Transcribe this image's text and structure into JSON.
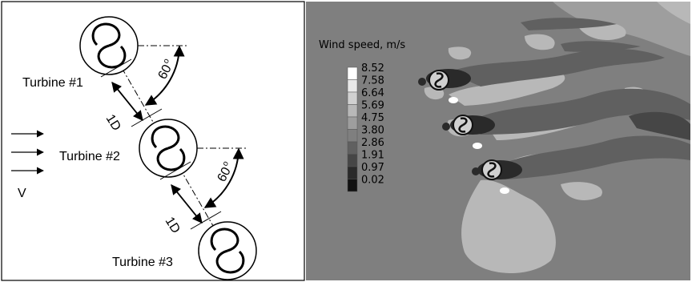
{
  "schematic": {
    "turbines": [
      {
        "label": "Turbine #1"
      },
      {
        "label": "Turbine #2"
      },
      {
        "label": "Turbine #3"
      }
    ],
    "spacing_label": "1D",
    "angle_label": "60",
    "angle_unit": "o",
    "velocity_label": "V"
  },
  "contour": {
    "title": "Wind speed, m/s",
    "legend": [
      {
        "value": "8.52",
        "color": "#ffffff"
      },
      {
        "value": "7.58",
        "color": "#e8e8e8"
      },
      {
        "value": "6.64",
        "color": "#d0d0d0"
      },
      {
        "value": "5.69",
        "color": "#b8b8b8"
      },
      {
        "value": "4.75",
        "color": "#9e9e9e"
      },
      {
        "value": "3.80",
        "color": "#7f7f7f"
      },
      {
        "value": "2.86",
        "color": "#606060"
      },
      {
        "value": "1.91",
        "color": "#464646"
      },
      {
        "value": "0.97",
        "color": "#2a2a2a"
      },
      {
        "value": "0.02",
        "color": "#111111"
      }
    ],
    "background_color": "#7f7f7f"
  }
}
